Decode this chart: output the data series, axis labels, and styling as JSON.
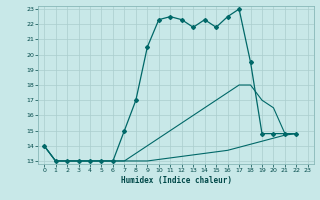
{
  "xlabel": "Humidex (Indice chaleur)",
  "bg_color": "#c8e8e8",
  "grid_color": "#aacece",
  "line_color": "#006868",
  "xlim": [
    -0.5,
    23.5
  ],
  "ylim": [
    12.8,
    23.2
  ],
  "xticks": [
    0,
    1,
    2,
    3,
    4,
    5,
    6,
    7,
    8,
    9,
    10,
    11,
    12,
    13,
    14,
    15,
    16,
    17,
    18,
    19,
    20,
    21,
    22,
    23
  ],
  "yticks": [
    13,
    14,
    15,
    16,
    17,
    18,
    19,
    20,
    21,
    22,
    23
  ],
  "line_main_x": [
    0,
    1,
    2,
    3,
    4,
    5,
    6,
    7,
    8,
    9,
    10,
    11,
    12,
    13,
    14,
    15,
    16,
    17,
    18,
    19,
    20,
    21,
    22
  ],
  "line_main_y": [
    14,
    13,
    13,
    13,
    13,
    13,
    13,
    15,
    17,
    20.5,
    22.3,
    22.5,
    22.3,
    21.8,
    22.3,
    21.8,
    22.5,
    23,
    19.5,
    14.8,
    14.8,
    14.8,
    14.8
  ],
  "line_mid_x": [
    0,
    1,
    2,
    3,
    4,
    5,
    6,
    7,
    8,
    9,
    10,
    11,
    12,
    13,
    14,
    15,
    16,
    17,
    18,
    19,
    20,
    21,
    22
  ],
  "line_mid_y": [
    14,
    13,
    13,
    13,
    13,
    13,
    13,
    13,
    13.5,
    14,
    14.5,
    15,
    15.5,
    16,
    16.5,
    17,
    17.5,
    18,
    18,
    17,
    16.5,
    14.8,
    14.8
  ],
  "line_bot_x": [
    0,
    1,
    2,
    3,
    4,
    5,
    6,
    7,
    8,
    9,
    10,
    11,
    12,
    13,
    14,
    15,
    16,
    17,
    18,
    19,
    20,
    21,
    22
  ],
  "line_bot_y": [
    14,
    13,
    13,
    13,
    13,
    13,
    13,
    13,
    13,
    13,
    13.1,
    13.2,
    13.3,
    13.4,
    13.5,
    13.6,
    13.7,
    13.9,
    14.1,
    14.3,
    14.5,
    14.7,
    14.8
  ]
}
